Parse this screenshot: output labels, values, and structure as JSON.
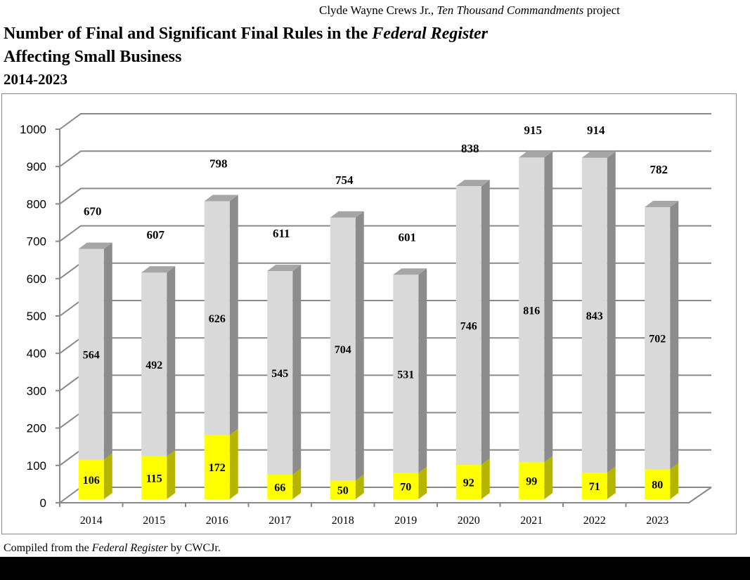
{
  "credit": {
    "author": "Clyde Wayne Crews Jr.,",
    "project_italic": "Ten Thousand Commandments",
    "suffix": "project"
  },
  "title": {
    "line1": "Number of Final and Significant Final Rules in the",
    "line1_italic": "Federal Register",
    "line2": "Affecting Small Business",
    "subtitle": "2014-2023"
  },
  "footer": {
    "prefix": "Compiled from the",
    "italic": "Federal Register",
    "suffix": "by CWCJr."
  },
  "chart_data": {
    "type": "bar",
    "stacked": true,
    "three_d": true,
    "categories": [
      "2014",
      "2015",
      "2016",
      "2017",
      "2018",
      "2019",
      "2020",
      "2021",
      "2022",
      "2023"
    ],
    "series": [
      {
        "values": [
          106,
          115,
          172,
          66,
          50,
          70,
          92,
          99,
          71,
          80
        ],
        "color": "#ffff00"
      },
      {
        "values": [
          564,
          492,
          626,
          545,
          704,
          531,
          746,
          816,
          843,
          702
        ],
        "color": "#d9d9d9"
      }
    ],
    "totals": [
      670,
      607,
      798,
      611,
      754,
      601,
      838,
      915,
      914,
      782
    ],
    "ylim": [
      0,
      1000
    ],
    "yticks": [
      0,
      100,
      200,
      300,
      400,
      500,
      600,
      700,
      800,
      900,
      1000
    ],
    "grid": true
  }
}
